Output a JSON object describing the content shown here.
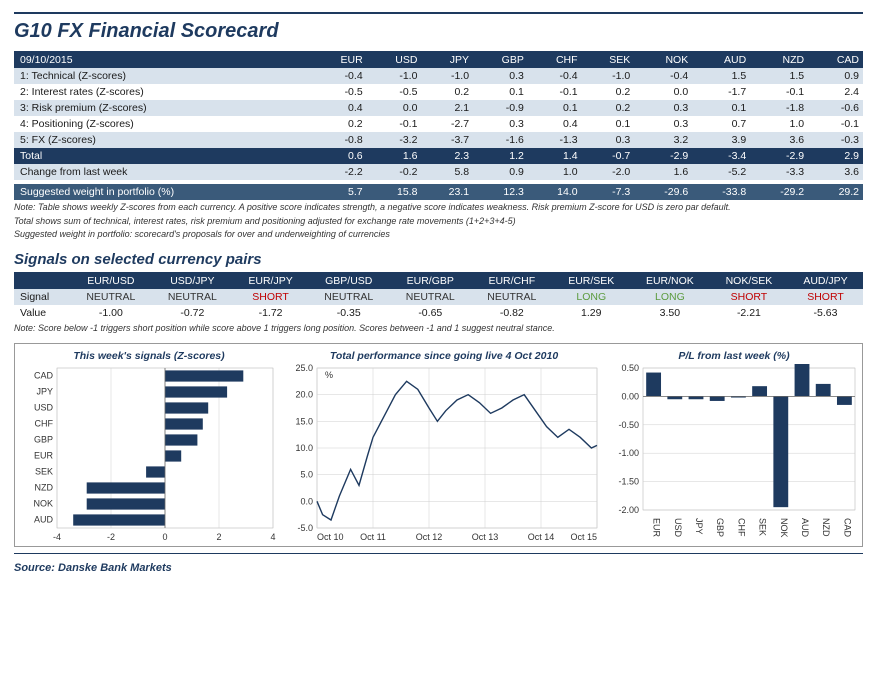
{
  "title": "G10 FX Financial Scorecard",
  "date_label": "09/10/2015",
  "currencies": [
    "EUR",
    "USD",
    "JPY",
    "GBP",
    "CHF",
    "SEK",
    "NOK",
    "AUD",
    "NZD",
    "CAD"
  ],
  "row_labels": [
    "1: Technical (Z-scores)",
    "2: Interest rates (Z-scores)",
    "3: Risk premium (Z-scores)",
    "4: Positioning (Z-scores)",
    "5: FX (Z-scores)"
  ],
  "rows": [
    [
      -0.4,
      -1.0,
      -1.0,
      0.3,
      -0.4,
      -1.0,
      -0.4,
      1.5,
      1.5,
      0.9
    ],
    [
      -0.5,
      -0.5,
      0.2,
      0.1,
      -0.1,
      0.2,
      0.0,
      -1.7,
      -0.1,
      2.4
    ],
    [
      0.4,
      0.0,
      2.1,
      -0.9,
      0.1,
      0.2,
      0.3,
      0.1,
      -1.8,
      -0.6
    ],
    [
      0.2,
      -0.1,
      -2.7,
      0.3,
      0.4,
      0.1,
      0.3,
      0.7,
      1.0,
      -0.1
    ],
    [
      -0.8,
      -3.2,
      -3.7,
      -1.6,
      -1.3,
      0.3,
      3.2,
      3.9,
      3.6,
      -0.3
    ]
  ],
  "total_label": "Total",
  "total": [
    0.6,
    1.6,
    2.3,
    1.2,
    1.4,
    -0.7,
    -2.9,
    -3.4,
    -2.9,
    2.9
  ],
  "change_label": "Change from last week",
  "change": [
    -2.2,
    -0.2,
    5.8,
    0.9,
    1.0,
    -2.0,
    1.6,
    -5.2,
    -3.3,
    3.6
  ],
  "weight_label": "Suggested weight in portfolio (%)",
  "weight": [
    5.7,
    15.8,
    23.1,
    12.3,
    14.0,
    -7.3,
    -29.6,
    -33.8,
    -29.2,
    29.2
  ],
  "notes1": [
    "Note: Table shows weekly Z-scores from each currency. A positive score indicates strength, a negative score indicates weakness. Risk premium Z-score for USD is zero par default.",
    "Total shows sum of technical, interest rates, risk premium and positioning adjusted for exchange rate movements (1+2+3+4-5)",
    "Suggested weight in portfolio: scorecard's proposals for over and underweighting of currencies"
  ],
  "signals_title": "Signals on selected currency pairs",
  "pairs": [
    "EUR/USD",
    "USD/JPY",
    "EUR/JPY",
    "GBP/USD",
    "EUR/GBP",
    "EUR/CHF",
    "EUR/SEK",
    "EUR/NOK",
    "NOK/SEK",
    "AUD/JPY"
  ],
  "signal_label": "Signal",
  "signals": [
    "NEUTRAL",
    "NEUTRAL",
    "SHORT",
    "NEUTRAL",
    "NEUTRAL",
    "NEUTRAL",
    "LONG",
    "LONG",
    "SHORT",
    "SHORT"
  ],
  "value_label": "Value",
  "values": [
    -1.0,
    -0.72,
    -1.72,
    -0.35,
    -0.65,
    -0.82,
    1.29,
    3.5,
    -2.21,
    -5.63
  ],
  "notes2": "Note: Score below -1 triggers short position while score above 1 triggers long position. Scores between -1 and 1 suggest neutral stance.",
  "chart1": {
    "title": "This week's signals (Z-scores)",
    "type": "bar-horizontal",
    "categories": [
      "CAD",
      "JPY",
      "USD",
      "CHF",
      "GBP",
      "EUR",
      "SEK",
      "NZD",
      "NOK",
      "AUD"
    ],
    "values": [
      2.9,
      2.3,
      1.6,
      1.4,
      1.2,
      0.6,
      -0.7,
      -2.9,
      -2.9,
      -3.4
    ],
    "xlim": [
      -4,
      4
    ],
    "xtick_step": 2,
    "bar_color": "#1e3a5f",
    "grid_color": "#cfcfcf",
    "bg": "#ffffff",
    "font_size": 10
  },
  "chart2": {
    "title": "Total performance since going live 4 Oct 2010",
    "type": "line",
    "ylabel": "%",
    "ylim": [
      -5,
      25
    ],
    "ytick_step": 5,
    "xlabels": [
      "Oct 10",
      "Oct 11",
      "Oct 12",
      "Oct 13",
      "Oct 14",
      "Oct 15"
    ],
    "line_color": "#1e3a5f",
    "grid_color": "#cfcfcf",
    "series": [
      [
        0,
        0
      ],
      [
        2,
        -2.5
      ],
      [
        5,
        -3.5
      ],
      [
        8,
        1
      ],
      [
        12,
        6
      ],
      [
        15,
        3
      ],
      [
        18,
        8.5
      ],
      [
        20,
        12
      ],
      [
        22,
        14
      ],
      [
        25,
        17
      ],
      [
        28,
        20
      ],
      [
        32,
        22.5
      ],
      [
        36,
        21
      ],
      [
        40,
        17.5
      ],
      [
        43,
        15
      ],
      [
        46,
        17
      ],
      [
        50,
        19
      ],
      [
        54,
        20
      ],
      [
        58,
        18.5
      ],
      [
        62,
        16.5
      ],
      [
        66,
        17.5
      ],
      [
        70,
        19
      ],
      [
        74,
        20
      ],
      [
        78,
        17
      ],
      [
        82,
        14
      ],
      [
        86,
        12
      ],
      [
        90,
        13.5
      ],
      [
        94,
        12
      ],
      [
        98,
        10
      ],
      [
        100,
        10.5
      ]
    ],
    "bg": "#ffffff",
    "font_size": 10
  },
  "chart3": {
    "title": "P/L from last week (%)",
    "type": "bar",
    "categories": [
      "EUR",
      "USD",
      "JPY",
      "GBP",
      "CHF",
      "SEK",
      "NOK",
      "AUD",
      "NZD",
      "CAD"
    ],
    "values": [
      0.42,
      -0.05,
      -0.05,
      -0.08,
      -0.02,
      0.18,
      -1.95,
      0.78,
      0.22,
      -0.15
    ],
    "ylim": [
      -2.0,
      0.5
    ],
    "ytick_step": 0.5,
    "bar_color": "#1e3a5f",
    "grid_color": "#cfcfcf",
    "bg": "#ffffff",
    "font_size": 10
  },
  "source": "Source: Danske Bank Markets"
}
